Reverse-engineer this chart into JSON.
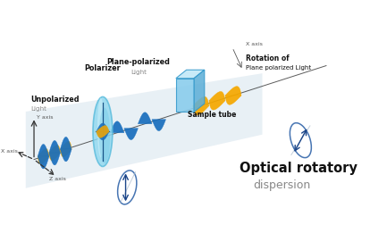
{
  "title": "Optical rotatory",
  "subtitle": "dispersion",
  "bg_color": "#ffffff",
  "shadow_color": "#dde8f0",
  "blue_wave": "#1a6fbd",
  "blue_wave2": "#2288cc",
  "yellow_wave": "#f5a800",
  "polarizer_outer": "#7dd4ec",
  "polarizer_inner": "#b8e8f8",
  "tube_front": "#8ed4ed",
  "tube_top": "#c8eef8",
  "tube_right": "#5ab8d8",
  "tube_edge": "#3399cc",
  "arrow_color": "#1a4488",
  "axis_color": "#555555",
  "text_dark": "#111111",
  "text_gray": "#888888",
  "labels": {
    "unpolarized": "Unpolarized",
    "light": "Light",
    "polarizer": "Polarizer",
    "plane_pol": "Plane-polarized",
    "plane_pol2": "Light",
    "sample_tube": "Sample tube",
    "rotation1": "Rotation of",
    "rotation2": "Plane polarized Light",
    "x_axis_top": "X axis",
    "x_axis_bot": "X axis",
    "y_axis": "Y axis",
    "z_axis": "Z axis"
  }
}
